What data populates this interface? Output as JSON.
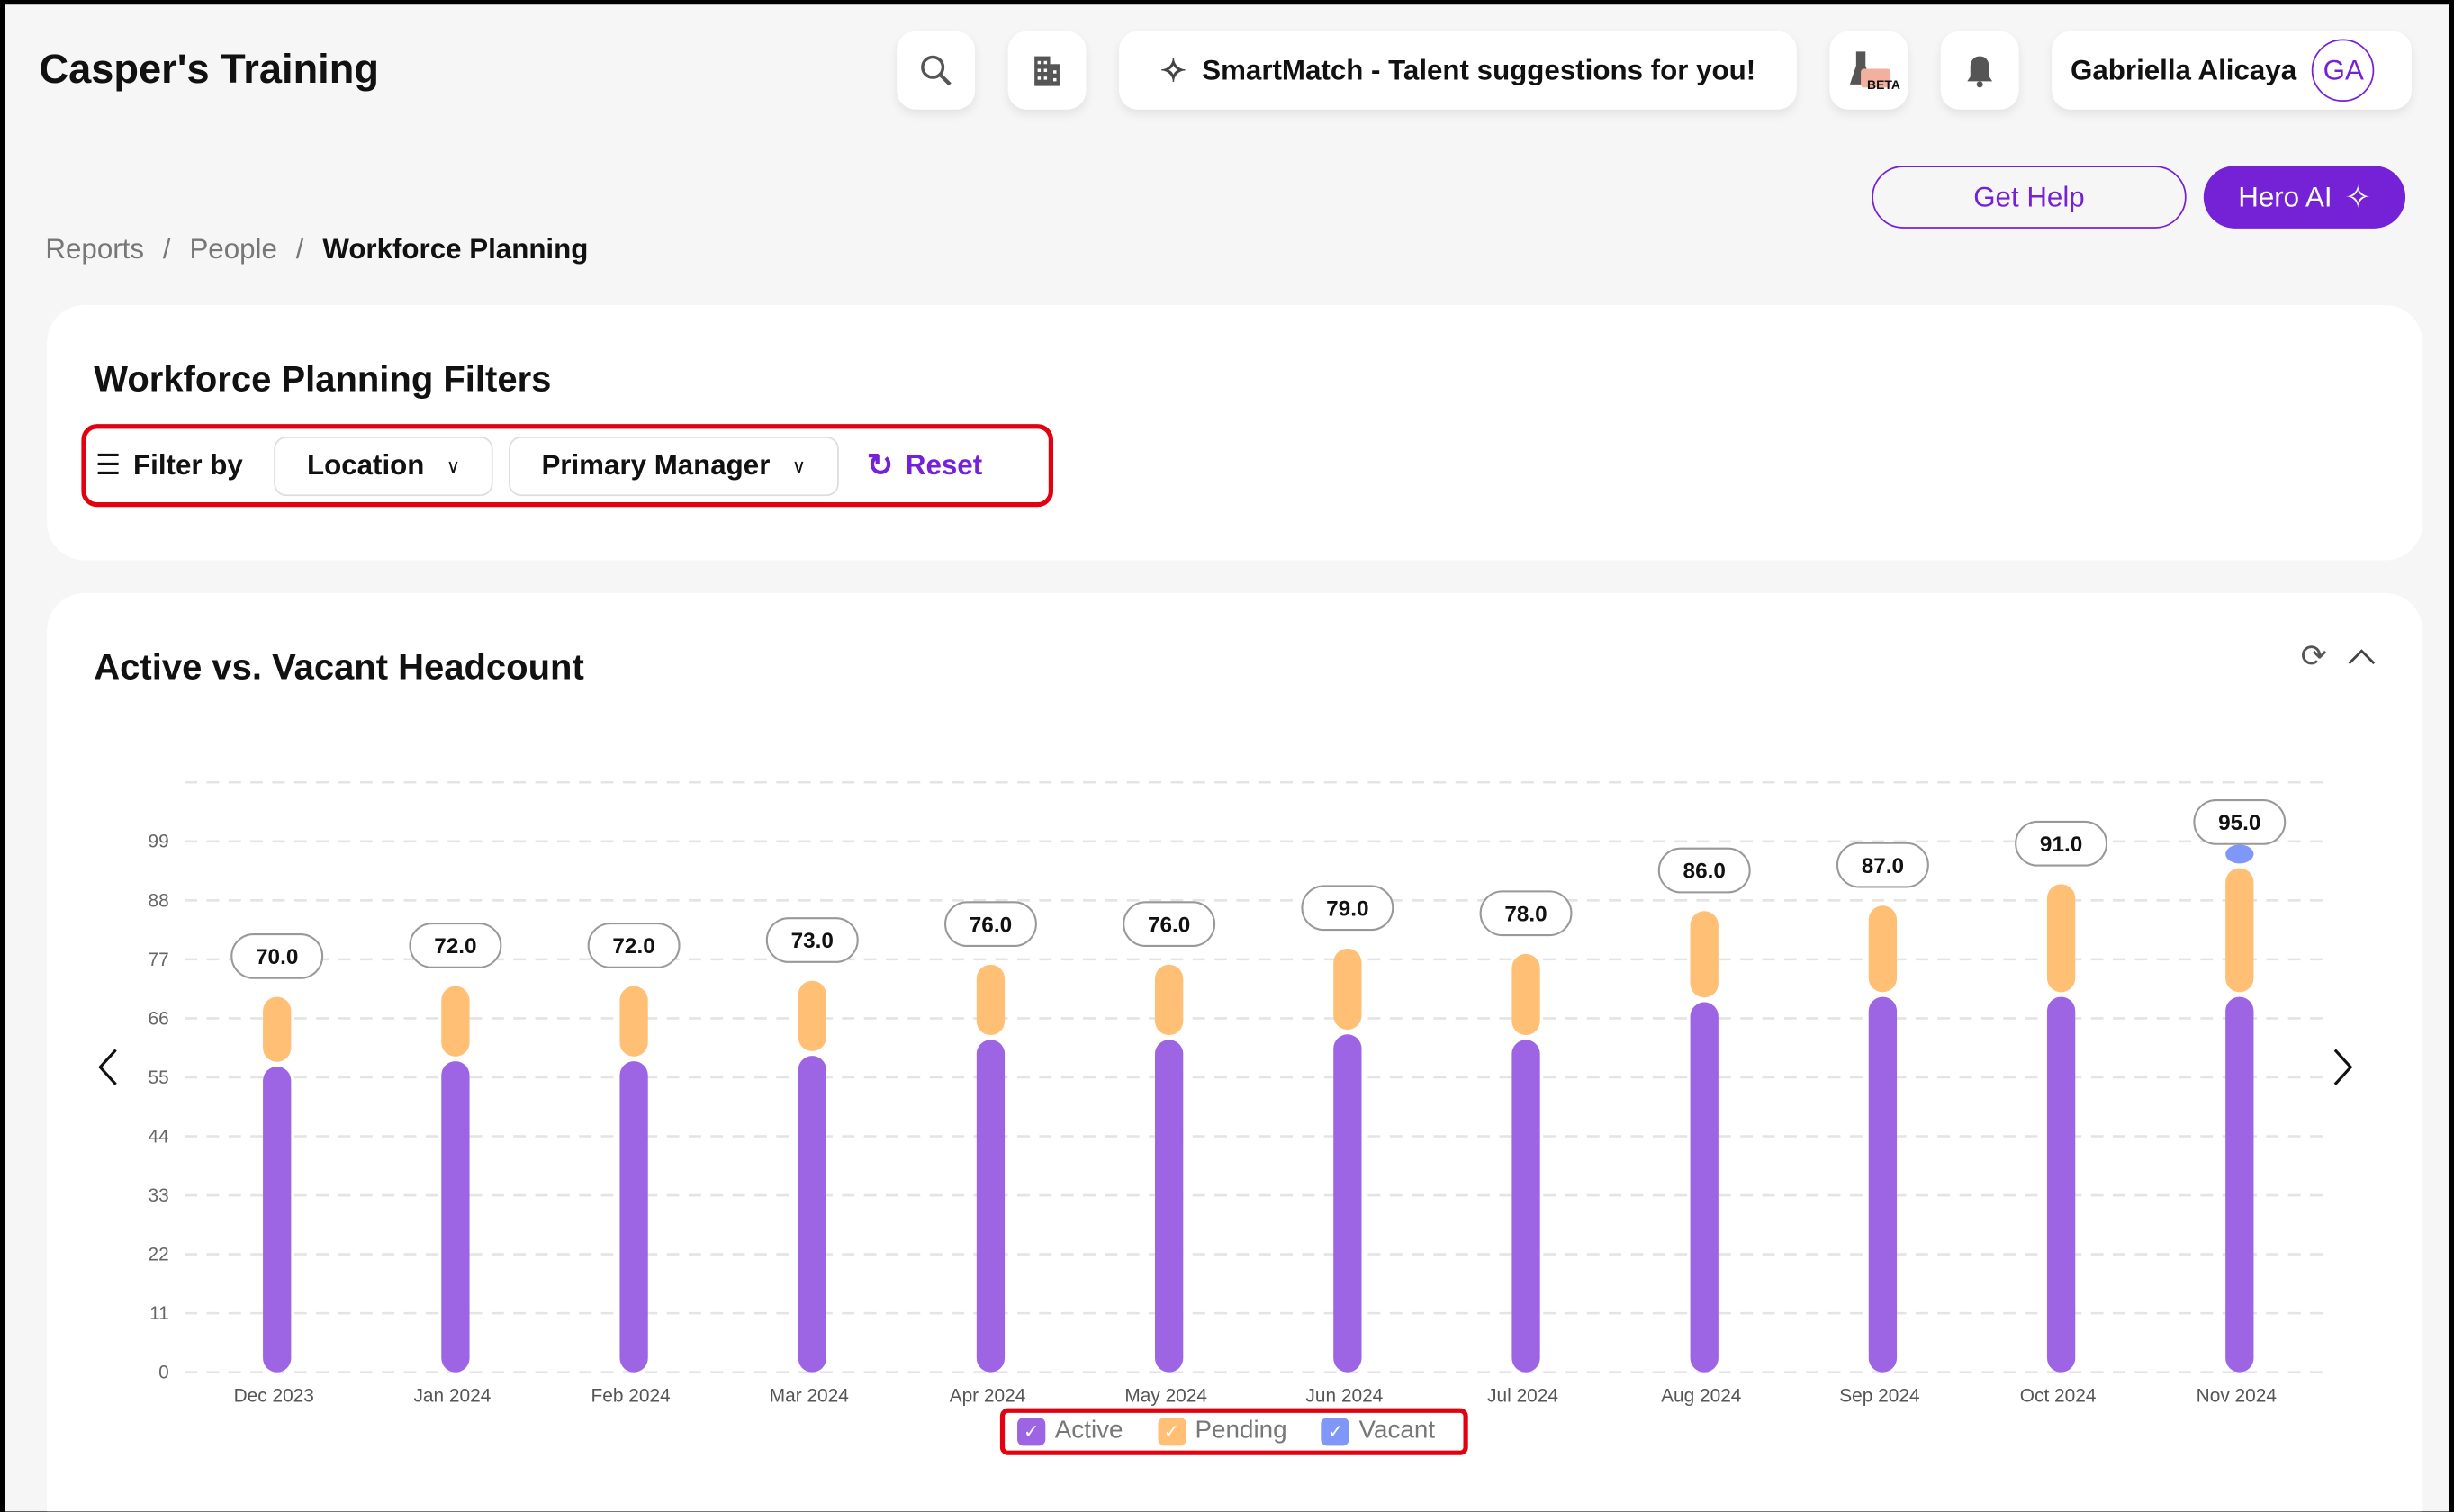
{
  "app": {
    "title": "Casper's Training"
  },
  "header": {
    "smartmatch": "SmartMatch - Talent suggestions for you!",
    "beta_badge": "BETA",
    "user_name": "Gabriella Alicaya",
    "user_initials": "GA",
    "get_help": "Get Help",
    "hero_ai": "Hero AI"
  },
  "breadcrumb": [
    "Reports",
    "People",
    "Workforce Planning"
  ],
  "filters": {
    "title": "Workforce Planning Filters",
    "filter_by": "Filter by",
    "location": "Location",
    "primary_manager": "Primary Manager",
    "reset": "Reset"
  },
  "colors": {
    "accent": "#7522d6",
    "active": "#9d64e3",
    "pending": "#ffbf74",
    "vacant": "#7f98f7",
    "highlight": "#e3000f"
  },
  "chart_data": {
    "type": "bar",
    "stacked": true,
    "title": "Active vs. Vacant Headcount",
    "categories": [
      "Dec 2023",
      "Jan 2024",
      "Feb 2024",
      "Mar 2024",
      "Apr 2024",
      "May 2024",
      "Jun 2024",
      "Jul 2024",
      "Aug 2024",
      "Sep 2024",
      "Oct 2024",
      "Nov 2024"
    ],
    "series": [
      {
        "name": "Active",
        "values": [
          57,
          58,
          58,
          59,
          62,
          62,
          63,
          62,
          69,
          70,
          70,
          70
        ]
      },
      {
        "name": "Pending",
        "values": [
          13,
          14,
          14,
          14,
          14,
          14,
          16,
          16,
          17,
          17,
          21,
          24
        ]
      },
      {
        "name": "Vacant",
        "values": [
          0,
          0,
          0,
          0,
          0,
          0,
          0,
          0,
          0,
          0,
          0,
          1
        ]
      }
    ],
    "totals": [
      "70.0",
      "72.0",
      "72.0",
      "73.0",
      "76.0",
      "76.0",
      "79.0",
      "78.0",
      "86.0",
      "87.0",
      "91.0",
      "95.0"
    ],
    "yticks": [
      0,
      11,
      22,
      33,
      44,
      55,
      66,
      77,
      88,
      99
    ],
    "ylim": [
      0,
      110
    ],
    "grid": true,
    "legend": "bottom"
  }
}
